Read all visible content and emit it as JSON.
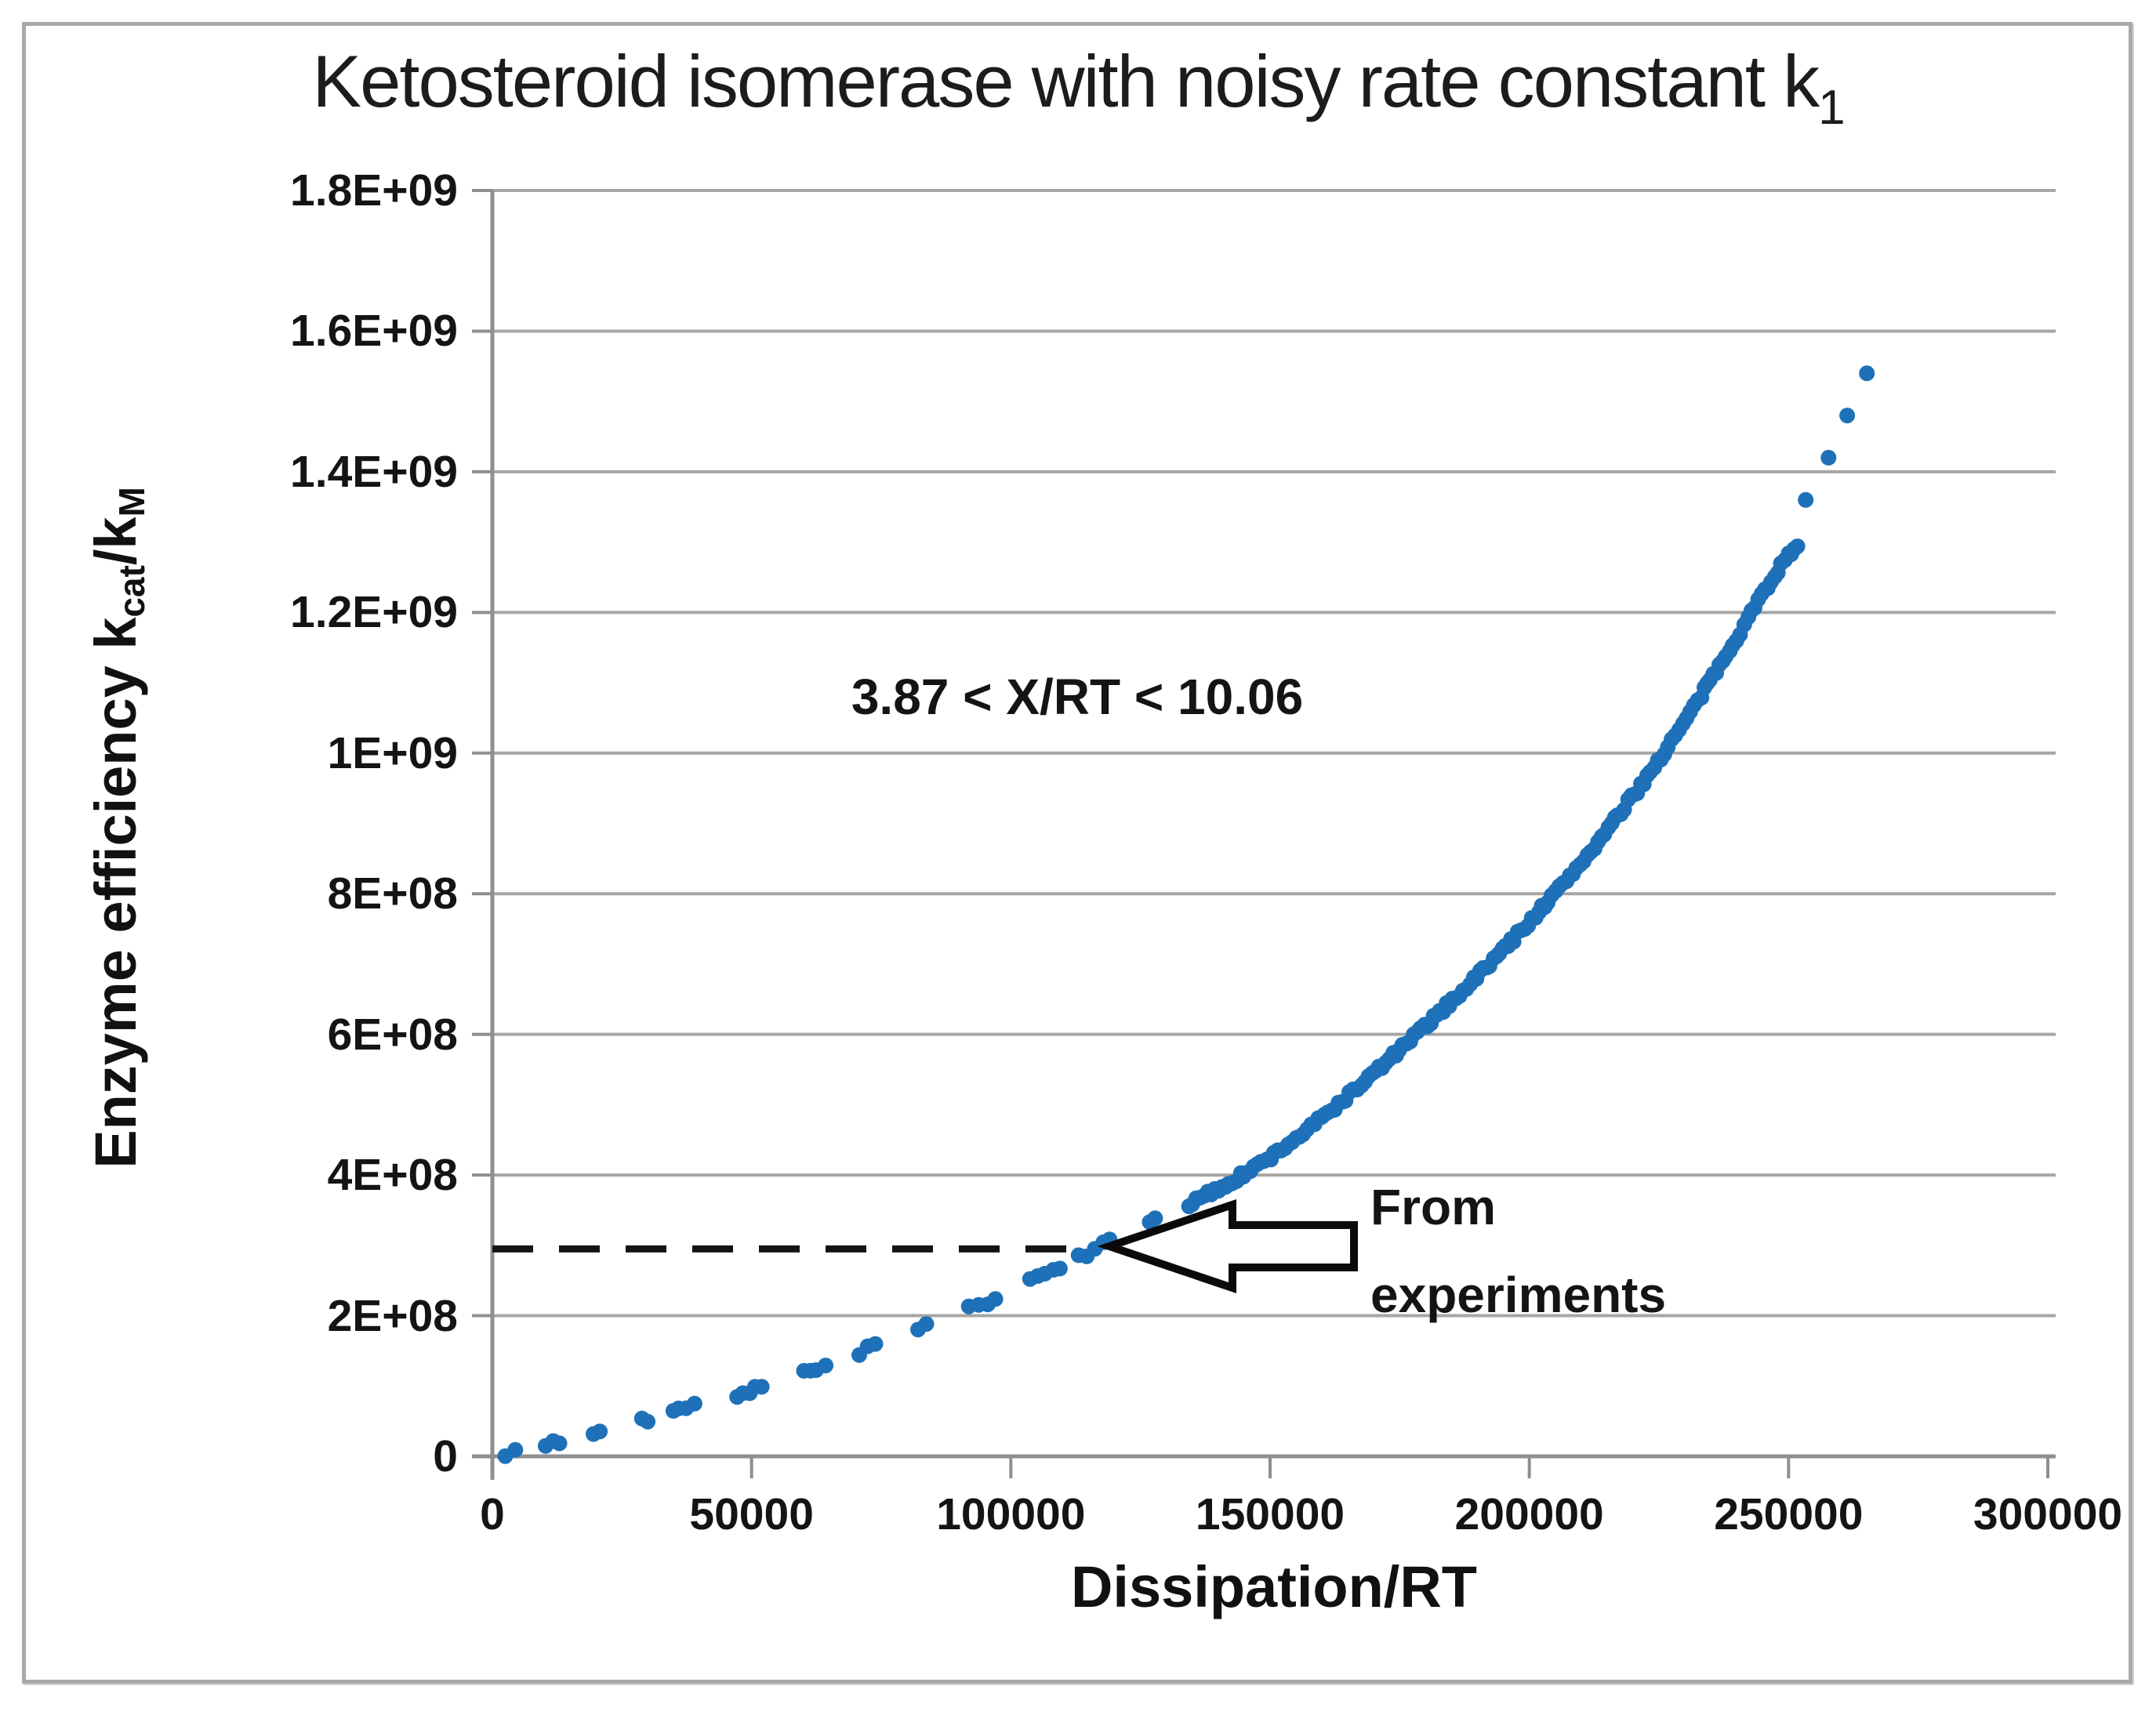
{
  "page": {
    "background": "#ffffff",
    "frame_color": "#a9a9a9"
  },
  "chart_data": {
    "type": "scatter",
    "title": "Ketosteroid isomerase with noisy rate constant k",
    "title_subscript": "1",
    "xlabel": "Dissipation/RT",
    "ylabel_parts": {
      "prefix": "Enzyme efficiency k",
      "sub1": "cat",
      "mid": "/k",
      "sub2": "M"
    },
    "xlim": [
      0,
      300000
    ],
    "ylim": [
      0,
      1800000000.0
    ],
    "grid": "horizontal-only",
    "legend": "none",
    "marker_color": "#1e71b8",
    "grid_color": "#a6a6a6",
    "axis_color": "#8f8f8f",
    "dash_color": "#141414",
    "xticks": [
      {
        "value": 0,
        "label": "0"
      },
      {
        "value": 50000,
        "label": "50000"
      },
      {
        "value": 100000,
        "label": "100000"
      },
      {
        "value": 150000,
        "label": "150000"
      },
      {
        "value": 200000,
        "label": "200000"
      },
      {
        "value": 250000,
        "label": "250000"
      },
      {
        "value": 300000,
        "label": "300000"
      }
    ],
    "yticks": [
      {
        "value": 0,
        "label": "0"
      },
      {
        "value": 200000000.0,
        "label": "2E+08"
      },
      {
        "value": 400000000.0,
        "label": "4E+08"
      },
      {
        "value": 600000000.0,
        "label": "6E+08"
      },
      {
        "value": 800000000.0,
        "label": "8E+08"
      },
      {
        "value": 1000000000.0,
        "label": "1E+09"
      },
      {
        "value": 1200000000.0,
        "label": "1.2E+09"
      },
      {
        "value": 1400000000.0,
        "label": "1.4E+09"
      },
      {
        "value": 1600000000.0,
        "label": "1.6E+09"
      },
      {
        "value": 1800000000.0,
        "label": "1.8E+09"
      }
    ],
    "annotation": "3.87 < X/RT < 10.06",
    "dashed_line": {
      "y_value": 295000000.0,
      "x_start": 0,
      "x_end": 112000,
      "meets_curve_at_x": 115500
    },
    "arrow": {
      "tip_x_value": 119000,
      "label_line1": "From",
      "label_line2": "experiments"
    },
    "trend_points": [
      [
        0,
        0
      ],
      [
        25000,
        43000000.0
      ],
      [
        50000,
        95000000.0
      ],
      [
        75000,
        160000000.0
      ],
      [
        100000,
        235000000.0
      ],
      [
        115000,
        290000000.0
      ],
      [
        130000,
        342000000.0
      ],
      [
        150000,
        425000000.0
      ],
      [
        175000,
        578000000.0
      ],
      [
        200000,
        760000000.0
      ],
      [
        215000,
        890000000.0
      ],
      [
        230000,
        1045000000.0
      ],
      [
        240000,
        1165000000.0
      ],
      [
        247000,
        1250000000.0
      ],
      [
        252000,
        1300000000.0
      ]
    ],
    "outlier_points": [
      [
        253300,
        1360000000.0
      ],
      [
        257700,
        1420000000.0
      ],
      [
        261300,
        1480000000.0
      ],
      [
        265100,
        1540000000.0
      ]
    ],
    "visual_sampling": {
      "x_start": 2500,
      "cluster_region_end": 128000,
      "cluster_step": 1300,
      "gap_min": 2600,
      "gap_max": 7000,
      "dense_step": 650,
      "x_end": 252200,
      "y_jitter": 9000000.0,
      "marker_radius_px": 10
    }
  }
}
